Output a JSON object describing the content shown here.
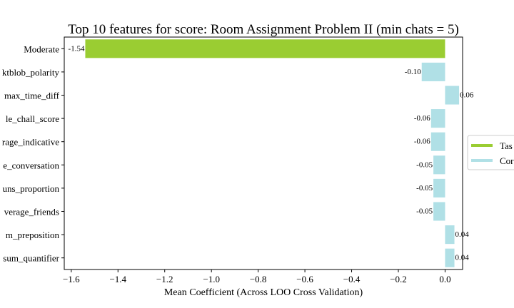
{
  "chart_data": {
    "type": "bar",
    "orientation": "horizontal",
    "title": "Top 10 features for score: Room Assignment Problem II (min chats = 5)",
    "xlabel": "Mean Coefficient (Across LOO Cross Validation)",
    "ylabel": "",
    "xlim": [
      -1.63,
      0.075
    ],
    "xticks": [
      -1.6,
      -1.4,
      -1.2,
      -1.0,
      -0.8,
      -0.6,
      -0.4,
      -0.2,
      0.0
    ],
    "xtick_labels": [
      "−1.6",
      "−1.4",
      "−1.2",
      "−1.0",
      "−0.8",
      "−0.6",
      "−0.4",
      "−0.2",
      "0.0"
    ],
    "categories": [
      "Moderate",
      "ktblob_polarity",
      "max_time_diff",
      "le_chall_score",
      "rage_indicative",
      "e_conversation",
      "uns_proportion",
      "verage_friends",
      "m_preposition",
      "sum_quantifier"
    ],
    "values": [
      -1.54,
      -0.1,
      0.06,
      -0.06,
      -0.06,
      -0.05,
      -0.05,
      -0.05,
      0.04,
      0.04
    ],
    "value_labels": [
      "-1.54",
      "-0.10",
      "0.06",
      "-0.06",
      "-0.06",
      "-0.05",
      "-0.05",
      "-0.05",
      "0.04",
      "0.04"
    ],
    "groups": [
      "task",
      "comm",
      "comm",
      "comm",
      "comm",
      "comm",
      "comm",
      "comm",
      "comm",
      "comm"
    ],
    "legend": {
      "placement": "right, outside",
      "entries": [
        {
          "key": "task",
          "label": "Tas",
          "color": "#9acd32"
        },
        {
          "key": "comm",
          "label": "Cor",
          "color": "#b0e0e6"
        }
      ]
    },
    "grid": false
  }
}
